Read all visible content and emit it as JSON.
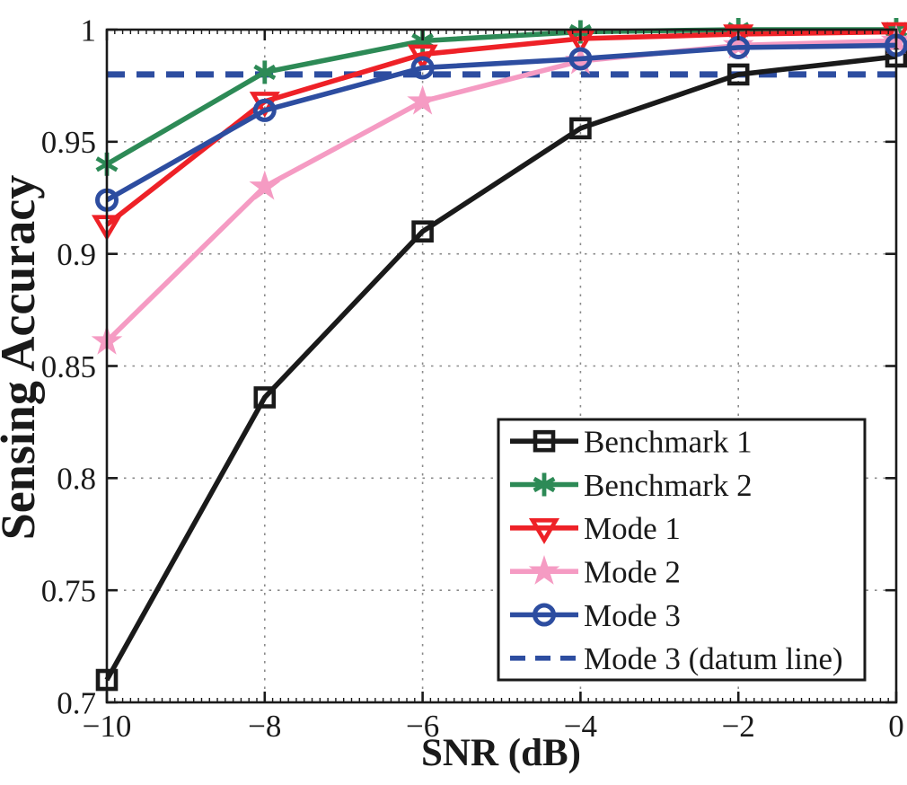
{
  "figure": {
    "background": "#ffffff",
    "axis_color": "#1a1a1a",
    "grid_color": "#8a8a8a"
  },
  "chart_data": {
    "type": "line",
    "title": "",
    "xlabel": "SNR (dB)",
    "ylabel": "Sensing Accuracy",
    "xlim": [
      -10,
      0
    ],
    "ylim": [
      0.7,
      1.0
    ],
    "xticks": [
      -10,
      -8,
      -6,
      -4,
      -2,
      0
    ],
    "xtick_labels": [
      "−10",
      "−8",
      "−6",
      "−4",
      "−2",
      "0"
    ],
    "yticks": [
      0.7,
      0.75,
      0.8,
      0.85,
      0.9,
      0.95,
      1
    ],
    "ytick_labels": [
      "0.7",
      "0.75",
      "0.8",
      "0.85",
      "0.9",
      "0.95",
      "1"
    ],
    "grid": "dotted-both-axes",
    "legend_position": "lower-right-inside",
    "x": [
      -10,
      -8,
      -6,
      -4,
      -2,
      0
    ],
    "series": [
      {
        "name": "Benchmark 1",
        "color": "#1a1a1a",
        "marker": "square",
        "line": "solid",
        "values": [
          0.71,
          0.836,
          0.91,
          0.956,
          0.98,
          0.988
        ]
      },
      {
        "name": "Benchmark 2",
        "color": "#2d8a56",
        "marker": "asterisk",
        "line": "solid",
        "values": [
          0.94,
          0.981,
          0.995,
          0.999,
          1.0,
          1.0
        ]
      },
      {
        "name": "Mode 1",
        "color": "#ee2127",
        "marker": "triangle-down",
        "line": "solid",
        "values": [
          0.913,
          0.968,
          0.989,
          0.996,
          0.998,
          0.999
        ]
      },
      {
        "name": "Mode 2",
        "color": "#f59bc3",
        "marker": "pentagram",
        "line": "solid",
        "values": [
          0.861,
          0.93,
          0.968,
          0.986,
          0.993,
          0.995
        ]
      },
      {
        "name": "Mode 3",
        "color": "#2d4da0",
        "marker": "circle",
        "line": "solid",
        "values": [
          0.924,
          0.964,
          0.983,
          0.987,
          0.992,
          0.993
        ]
      },
      {
        "name": "Mode 3 (datum line)",
        "color": "#2d4da0",
        "marker": "none",
        "line": "dashed",
        "datum": 0.98
      }
    ]
  }
}
